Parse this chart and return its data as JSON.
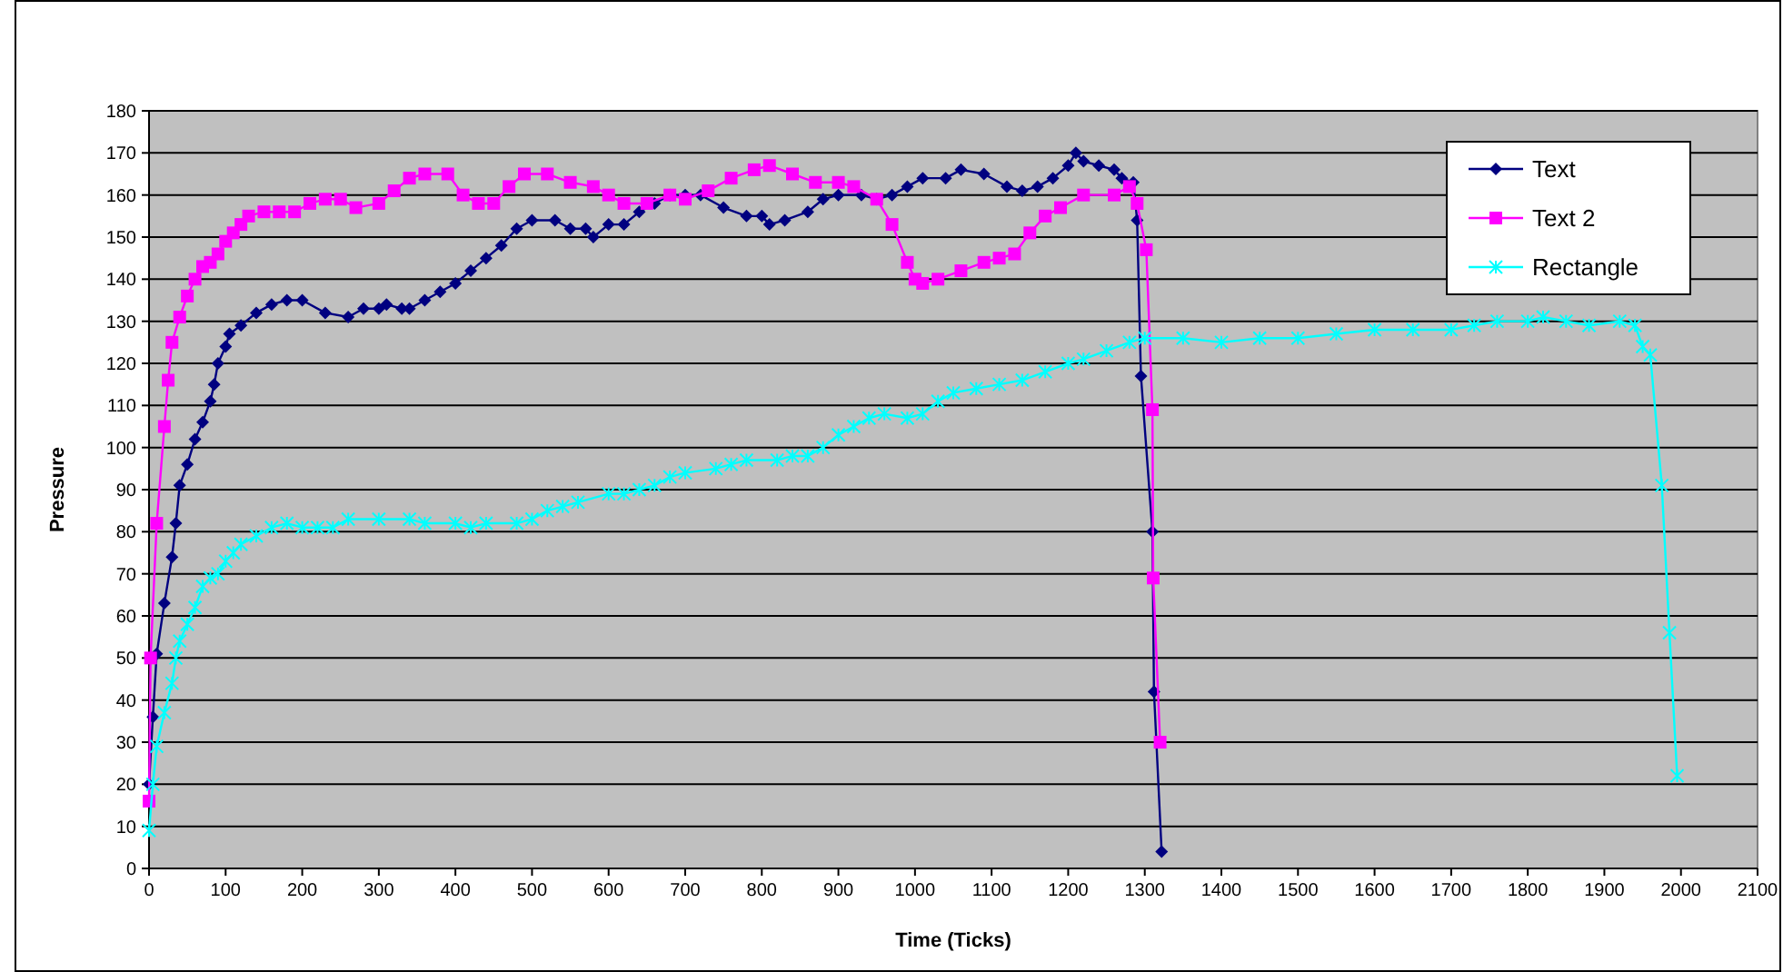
{
  "chart_data": {
    "type": "line",
    "xlabel": "Time (Ticks)",
    "ylabel": "Pressure",
    "xlim": [
      0,
      2100
    ],
    "xticks": [
      0,
      100,
      200,
      300,
      400,
      500,
      600,
      700,
      800,
      900,
      1000,
      1100,
      1200,
      1300,
      1400,
      1500,
      1600,
      1700,
      1800,
      1900,
      2000,
      2100
    ],
    "ylim": [
      0,
      180
    ],
    "yticks": [
      0,
      10,
      20,
      30,
      40,
      50,
      60,
      70,
      80,
      90,
      100,
      110,
      120,
      130,
      140,
      150,
      160,
      170,
      180
    ],
    "grid": "y",
    "legend": "top right",
    "series": [
      {
        "name": "Text",
        "color": "#000080",
        "marker": "diamond",
        "x": [
          0,
          5,
          10,
          20,
          30,
          35,
          40,
          50,
          60,
          70,
          80,
          85,
          90,
          100,
          105,
          120,
          140,
          160,
          180,
          200,
          230,
          260,
          280,
          300,
          310,
          330,
          340,
          360,
          380,
          400,
          420,
          440,
          460,
          480,
          500,
          530,
          550,
          570,
          580,
          600,
          620,
          640,
          660,
          680,
          700,
          720,
          750,
          780,
          800,
          810,
          830,
          860,
          880,
          900,
          930,
          950,
          970,
          990,
          1010,
          1040,
          1060,
          1090,
          1120,
          1140,
          1160,
          1180,
          1200,
          1210,
          1220,
          1240,
          1260,
          1270,
          1285,
          1290,
          1295,
          1310,
          1312,
          1322
        ],
        "values": [
          20,
          36,
          51,
          63,
          74,
          82,
          91,
          96,
          102,
          106,
          111,
          115,
          120,
          124,
          127,
          129,
          132,
          134,
          135,
          135,
          132,
          131,
          133,
          133,
          134,
          133,
          133,
          135,
          137,
          139,
          142,
          145,
          148,
          152,
          154,
          154,
          152,
          152,
          150,
          153,
          153,
          156,
          158,
          160,
          160,
          160,
          157,
          155,
          155,
          153,
          154,
          156,
          159,
          160,
          160,
          159,
          160,
          162,
          164,
          164,
          166,
          165,
          162,
          161,
          162,
          164,
          167,
          170,
          168,
          167,
          166,
          164,
          163,
          154,
          117,
          80,
          42,
          4
        ]
      },
      {
        "name": "Text 2",
        "color": "#ff00ff",
        "marker": "square",
        "x": [
          0,
          2,
          10,
          20,
          25,
          30,
          40,
          50,
          60,
          70,
          80,
          90,
          100,
          110,
          120,
          130,
          150,
          170,
          190,
          210,
          230,
          250,
          270,
          300,
          320,
          340,
          360,
          390,
          410,
          430,
          450,
          470,
          490,
          520,
          550,
          580,
          600,
          620,
          650,
          680,
          700,
          730,
          760,
          790,
          810,
          840,
          870,
          900,
          920,
          950,
          970,
          990,
          1000,
          1010,
          1030,
          1060,
          1090,
          1110,
          1130,
          1150,
          1170,
          1190,
          1220,
          1260,
          1280,
          1290,
          1302,
          1310,
          1311,
          1320
        ],
        "values": [
          16,
          50,
          82,
          105,
          116,
          125,
          131,
          136,
          140,
          143,
          144,
          146,
          149,
          151,
          153,
          155,
          156,
          156,
          156,
          158,
          159,
          159,
          157,
          158,
          161,
          164,
          165,
          165,
          160,
          158,
          158,
          162,
          165,
          165,
          163,
          162,
          160,
          158,
          158,
          160,
          159,
          161,
          164,
          166,
          167,
          165,
          163,
          163,
          162,
          159,
          153,
          144,
          140,
          139,
          140,
          142,
          144,
          145,
          146,
          151,
          155,
          157,
          160,
          160,
          162,
          158,
          147,
          109,
          69,
          30
        ]
      },
      {
        "name": "Rectangle",
        "color": "#00ffff",
        "marker": "cross",
        "x": [
          0,
          5,
          10,
          20,
          30,
          35,
          40,
          50,
          60,
          70,
          80,
          90,
          100,
          110,
          120,
          140,
          160,
          180,
          200,
          220,
          240,
          260,
          300,
          340,
          360,
          400,
          420,
          440,
          480,
          500,
          520,
          540,
          560,
          600,
          620,
          640,
          660,
          680,
          700,
          740,
          760,
          780,
          820,
          840,
          860,
          880,
          900,
          920,
          940,
          960,
          990,
          1010,
          1030,
          1050,
          1080,
          1110,
          1140,
          1170,
          1200,
          1220,
          1250,
          1280,
          1300,
          1350,
          1400,
          1450,
          1500,
          1550,
          1600,
          1650,
          1700,
          1730,
          1760,
          1800,
          1820,
          1850,
          1880,
          1920,
          1940,
          1950,
          1960,
          1975,
          1985,
          1995
        ],
        "values": [
          9,
          20,
          29,
          37,
          44,
          50,
          54,
          58,
          62,
          67,
          69,
          70,
          73,
          75,
          77,
          79,
          81,
          82,
          81,
          81,
          81,
          83,
          83,
          83,
          82,
          82,
          81,
          82,
          82,
          83,
          85,
          86,
          87,
          89,
          89,
          90,
          91,
          93,
          94,
          95,
          96,
          97,
          97,
          98,
          98,
          100,
          103,
          105,
          107,
          108,
          107,
          108,
          111,
          113,
          114,
          115,
          116,
          118,
          120,
          121,
          123,
          125,
          126,
          126,
          125,
          126,
          126,
          127,
          128,
          128,
          128,
          129,
          130,
          130,
          131,
          130,
          129,
          130,
          129,
          124,
          122,
          91,
          56,
          22
        ]
      }
    ]
  }
}
